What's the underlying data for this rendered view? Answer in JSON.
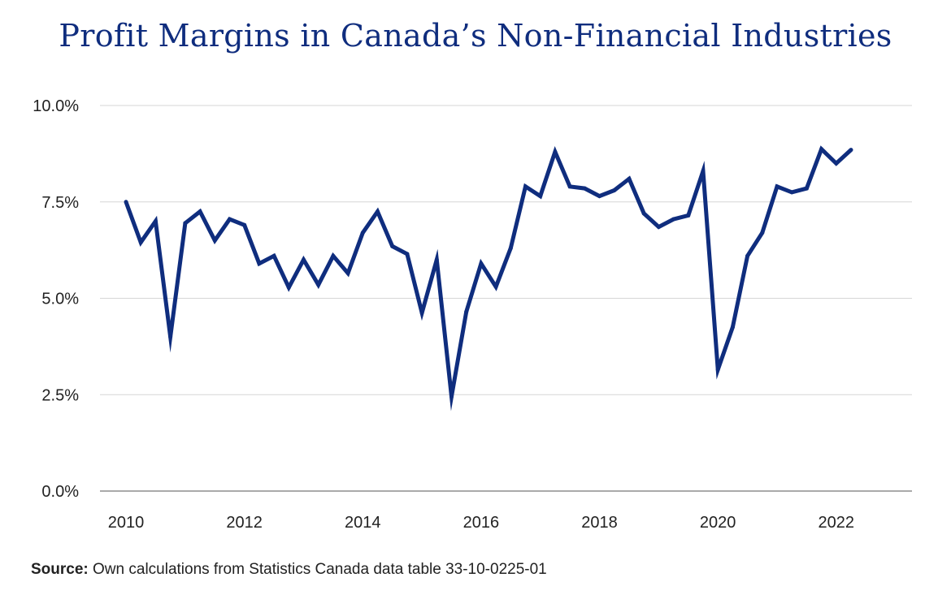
{
  "chart_data": {
    "type": "line",
    "title": "Profit Margins in Canada’s Non-Financial Industries",
    "xlabel": "",
    "ylabel": "",
    "xlim": [
      2009.56,
      2023.28
    ],
    "ylim": [
      0,
      10
    ],
    "y_ticks": [
      "0.0%",
      "2.5%",
      "5.0%",
      "7.5%",
      "10.0%"
    ],
    "y_tick_values": [
      0,
      2.5,
      5,
      7.5,
      10
    ],
    "x_ticks": [
      "2010",
      "2012",
      "2014",
      "2016",
      "2018",
      "2020",
      "2022"
    ],
    "x_tick_values": [
      2010,
      2012,
      2014,
      2016,
      2018,
      2020,
      2022
    ],
    "grid": "horizontal",
    "color": "#0f2d7e",
    "series": [
      {
        "x": [
          2010.0,
          2010.25,
          2010.5,
          2010.75,
          2011.0,
          2011.25,
          2011.5,
          2011.75,
          2012.0,
          2012.25,
          2012.5,
          2012.75,
          2013.0,
          2013.25,
          2013.5,
          2013.75,
          2014.0,
          2014.25,
          2014.5,
          2014.75,
          2015.0,
          2015.25,
          2015.5,
          2015.75,
          2016.0,
          2016.25,
          2016.5,
          2016.75,
          2017.0,
          2017.25,
          2017.5,
          2017.75,
          2018.0,
          2018.25,
          2018.5,
          2018.75,
          2019.0,
          2019.25,
          2019.5,
          2019.75,
          2020.0,
          2020.25,
          2020.5,
          2020.75,
          2021.0,
          2021.25,
          2021.5,
          2021.75,
          2022.0,
          2022.25
        ],
        "values": [
          7.5,
          6.45,
          7.0,
          4.0,
          6.95,
          7.25,
          6.5,
          7.05,
          6.9,
          5.9,
          6.1,
          5.28,
          6.0,
          5.35,
          6.1,
          5.65,
          6.7,
          7.25,
          6.35,
          6.15,
          4.62,
          6.0,
          2.45,
          4.65,
          5.9,
          5.3,
          6.3,
          7.9,
          7.65,
          8.8,
          7.9,
          7.85,
          7.65,
          7.8,
          8.1,
          7.2,
          6.85,
          7.05,
          7.15,
          8.3,
          3.15,
          4.25,
          6.1,
          6.7,
          7.9,
          7.75,
          7.85,
          8.87,
          8.5,
          8.85
        ]
      }
    ]
  },
  "source": {
    "label": "Source:",
    "text": " Own calculations from Statistics Canada data table 33-10-0225-01"
  }
}
